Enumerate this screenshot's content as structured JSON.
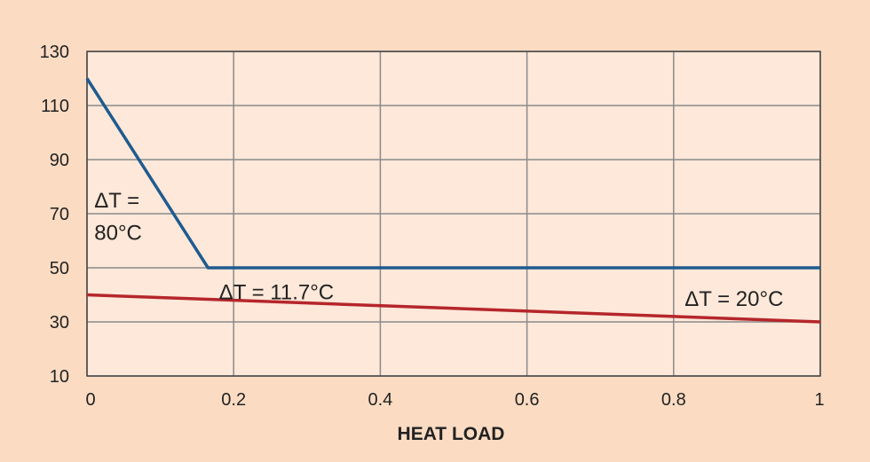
{
  "chart_data": {
    "type": "line",
    "title": "",
    "xlabel": "HEAT LOAD",
    "ylabel": "",
    "xlim": [
      0,
      1
    ],
    "ylim": [
      10,
      130
    ],
    "xticks": [
      "0",
      "0.2",
      "0.4",
      "0.6",
      "0.8",
      "1"
    ],
    "xtick_values": [
      0,
      0.2,
      0.4,
      0.6,
      0.8,
      1
    ],
    "yticks": [
      "130",
      "110",
      "90",
      "70",
      "50",
      "30",
      "10"
    ],
    "ytick_values": [
      130,
      110,
      90,
      70,
      50,
      30,
      10
    ],
    "grid": true,
    "series": [
      {
        "color": "#1f5b8f",
        "x": [
          0,
          0.165,
          1
        ],
        "y": [
          120,
          50,
          50
        ]
      },
      {
        "color": "#b5262b",
        "x": [
          0,
          1
        ],
        "y": [
          40,
          30
        ]
      }
    ],
    "annotations": [
      {
        "text": "ΔT =",
        "x": 0.01,
        "y": 75
      },
      {
        "text": "80°C",
        "x": 0.01,
        "y": 63
      },
      {
        "text": "ΔT = 11.7°C",
        "x": 0.18,
        "y": 41
      },
      {
        "text": "ΔT = 20°C",
        "x": 0.815,
        "y": 38.5
      }
    ]
  },
  "colors": {
    "page_background": "#fbdcc3",
    "plot_background": "#fde8d9",
    "grid": "#8a8a8a",
    "frame": "#444444"
  }
}
